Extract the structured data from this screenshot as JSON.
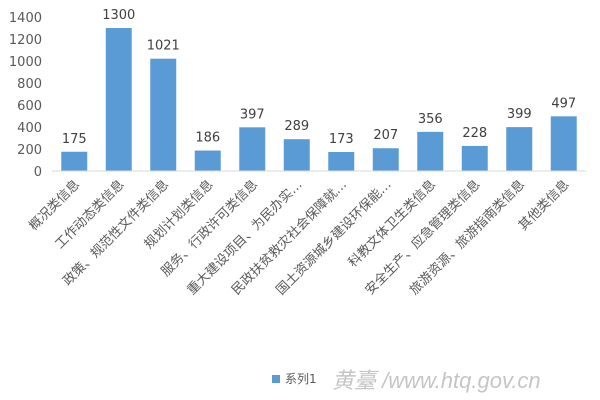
{
  "chart_data": {
    "type": "bar",
    "categories": [
      "概况类信息",
      "工作动态类信息",
      "政策、规范性文件类信息",
      "规划计划类信息",
      "服务、行政许可类信息",
      "重大建设项目、为民办实…",
      "民政扶贫救灾社会保障就…",
      "国土资源城乡建设环保能…",
      "科教文体卫生类信息",
      "安全生产、应急管理类信息",
      "旅游资源、旅游指南类信息",
      "其他类信息"
    ],
    "series": [
      {
        "name": "系列1",
        "values": [
          175,
          1300,
          1021,
          186,
          397,
          289,
          173,
          207,
          356,
          228,
          399,
          497
        ]
      }
    ],
    "ylim": [
      0,
      1400
    ],
    "yticks": [
      0,
      200,
      400,
      600,
      800,
      1000,
      1200,
      1400
    ],
    "grid": false,
    "legend": "bottom",
    "color": "#5b9bd5"
  },
  "watermark": "黄臺 /www.htq.gov.cn"
}
